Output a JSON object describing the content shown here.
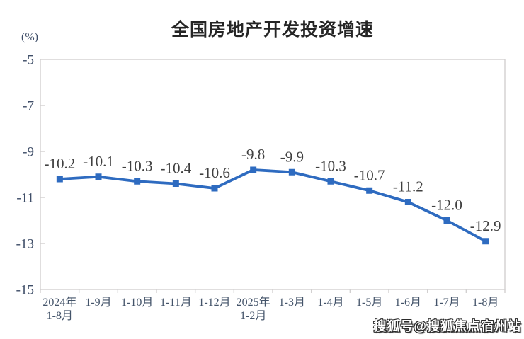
{
  "watermark": "搜狐号@搜狐焦点宿州站",
  "chart_data": {
    "type": "line",
    "title": "全国房地产开发投资增速",
    "unit_label": "(%)",
    "xlabel": "",
    "ylabel": "(%)",
    "categories": [
      [
        "2024年",
        "1-8月"
      ],
      [
        "1-9月"
      ],
      [
        "1-10月"
      ],
      [
        "1-11月"
      ],
      [
        "1-12月"
      ],
      [
        "2025年",
        "1-2月"
      ],
      [
        "1-3月"
      ],
      [
        "1-4月"
      ],
      [
        "1-5月"
      ],
      [
        "1-6月"
      ],
      [
        "1-7月"
      ],
      [
        "1-8月"
      ]
    ],
    "values": [
      -10.2,
      -10.1,
      -10.3,
      -10.4,
      -10.6,
      -9.8,
      -9.9,
      -10.3,
      -10.7,
      -11.2,
      -12.0,
      -12.9
    ],
    "point_labels": [
      "-10.2",
      "-10.1",
      "-10.3",
      "-10.4",
      "-10.6",
      "-9.8",
      "-9.9",
      "-10.3",
      "-10.7",
      "-11.2",
      "-12.0",
      "-12.9"
    ],
    "yticks": [
      -5,
      -7,
      -9,
      -11,
      -13,
      -15
    ],
    "ytick_labels": [
      "-5",
      "-7",
      "-9",
      "-11",
      "-13",
      "-15"
    ],
    "ylim": [
      -15,
      -5
    ],
    "grid": false,
    "legend": false,
    "marker": "square",
    "colors": {
      "line": "#2e6bc0",
      "marker": "#2e6bc0",
      "plot_border": "#d2d0d0",
      "axis_text": "#44546a",
      "data_label_text": "#404040",
      "title_text": "#252525"
    }
  }
}
